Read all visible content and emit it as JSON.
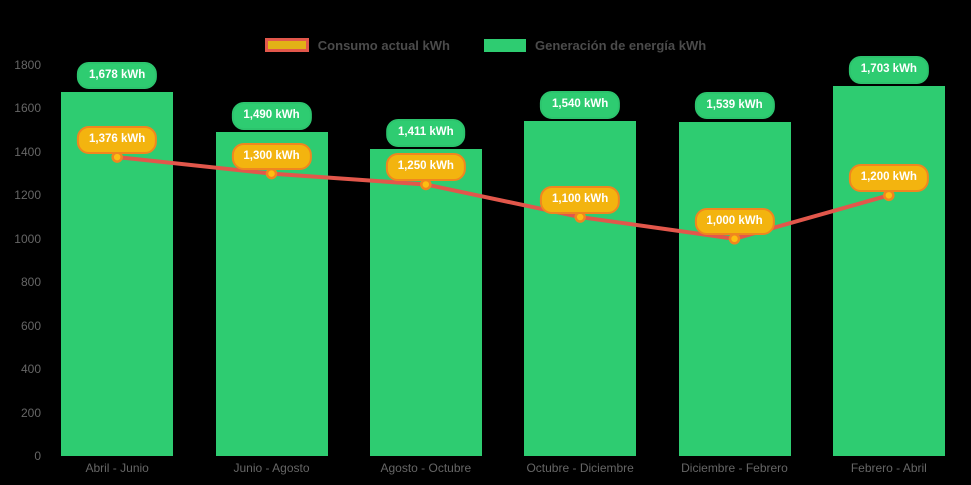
{
  "chart_data": {
    "type": "bar+line",
    "title": "",
    "xlabel": "",
    "ylabel": "",
    "categories": [
      "Abril - Junio",
      "Junio - Agosto",
      "Agosto - Octubre",
      "Octubre - Diciembre",
      "Diciembre - Febrero",
      "Febrero - Abril"
    ],
    "series": [
      {
        "name": "Consumo actual kWh",
        "type": "line",
        "values": [
          1376,
          1300,
          1250,
          1100,
          1000,
          1200
        ],
        "labels": [
          "1,376 kWh",
          "1,300 kWh",
          "1,250 kWh",
          "1,100 kWh",
          "1,000 kWh",
          "1,200 kWh"
        ],
        "color": "#e2574b",
        "point_fill": "#fdbe11",
        "point_border": "#f0861f",
        "label_bg": "#f3b40f",
        "label_border": "#f0861f",
        "swatch_fill": "#e2b117",
        "swatch_border": "#e2574b"
      },
      {
        "name": "Generación de energía kWh",
        "type": "bar",
        "values": [
          1678,
          1490,
          1411,
          1540,
          1539,
          1703
        ],
        "labels": [
          "1,678 kWh",
          "1,490 kWh",
          "1,411 kWh",
          "1,540 kWh",
          "1,539 kWh",
          "1,703 kWh"
        ],
        "color": "#2ecc71",
        "label_bg": "#2ecc71",
        "label_border": "#2cc46d",
        "swatch_fill": "#2ecc71"
      }
    ],
    "ylim": [
      0,
      1800
    ],
    "yticks": [
      0,
      200,
      400,
      600,
      800,
      1000,
      1200,
      1400,
      1600,
      1800
    ],
    "grid": false,
    "legend_position": "top",
    "axis_text_color": "#666666",
    "legend_text_color": "#4b4b4b",
    "background": "#000000"
  }
}
